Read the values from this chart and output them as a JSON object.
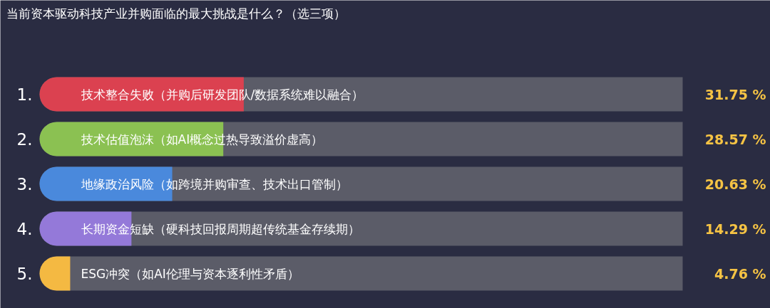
{
  "chart_data": {
    "type": "bar",
    "orientation": "horizontal",
    "title": "当前资本驱动科技产业并购面临的最大挑战是什么？（选三项）",
    "categories": [
      "技术整合失败（并购后研发团队/数据系统难以融合）",
      "技术估值泡沫（如AI概念过热导致溢价虚高）",
      "地缘政治风险（如跨境并购审查、技术出口管制）",
      "长期资金短缺（硬科技回报周期超传统基金存续期）",
      "ESG冲突（如AI伦理与资本逐利性矛盾）"
    ],
    "values": [
      31.75,
      28.57,
      20.63,
      14.29,
      4.76
    ],
    "colors": [
      "#db4150",
      "#8bc152",
      "#4a89dc",
      "#9479d9",
      "#f4b942"
    ],
    "value_labels": [
      "31.75 %",
      "28.57 %",
      "20.63 %",
      "14.29 %",
      "4.76 %"
    ],
    "annotations": [
      "1.",
      "2.",
      "3.",
      "4.",
      "5."
    ]
  }
}
